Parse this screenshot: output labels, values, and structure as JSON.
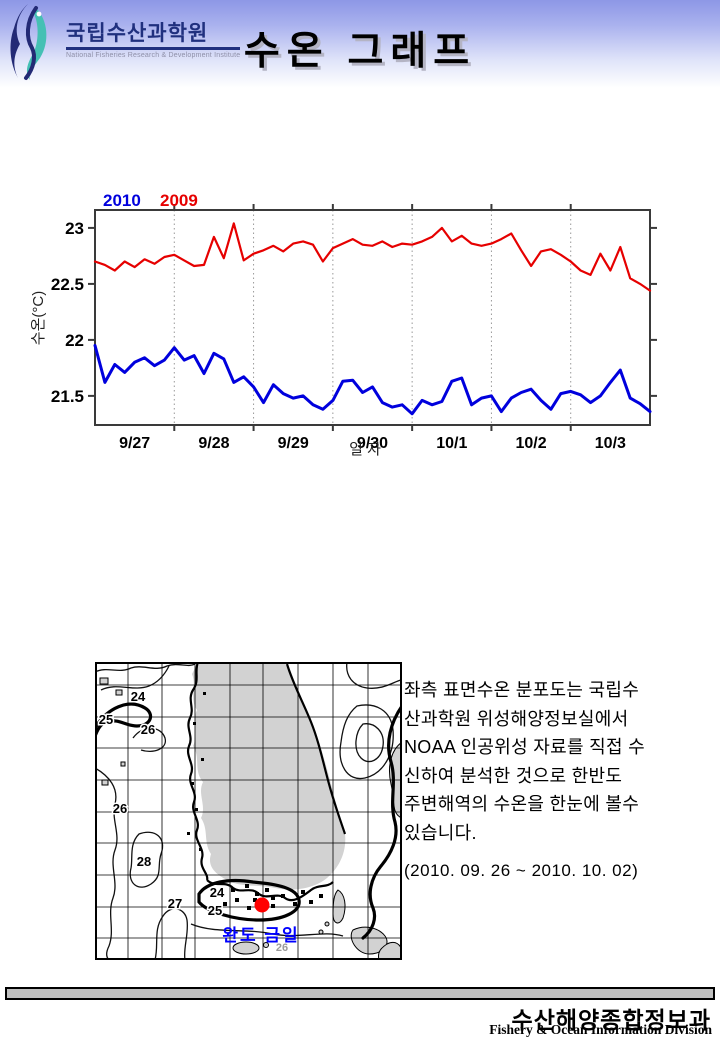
{
  "header": {
    "logo": {
      "org_name": "국립수산과학원",
      "org_subtitle": "National Fisheries Research & Development Institute"
    },
    "title": "수온 그래프"
  },
  "chart_data": {
    "type": "line",
    "xlabel": "일 자",
    "ylabel": "수온(°C)",
    "x_tick_labels": [
      "9/27",
      "9/28",
      "9/29",
      "9/30",
      "10/1",
      "10/2",
      "10/3"
    ],
    "y_ticks": [
      23,
      22.5,
      22,
      21.5
    ],
    "ylim": [
      21.24,
      23.16
    ],
    "grid": "vertical-dotted",
    "legend_position": "top-left",
    "series": [
      {
        "name": "2010",
        "color": "#0000dd",
        "width": 3,
        "values": [
          21.95,
          21.62,
          21.78,
          21.71,
          21.8,
          21.84,
          21.77,
          21.82,
          21.93,
          21.82,
          21.86,
          21.7,
          21.88,
          21.83,
          21.62,
          21.67,
          21.58,
          21.44,
          21.6,
          21.52,
          21.48,
          21.5,
          21.42,
          21.38,
          21.46,
          21.63,
          21.64,
          21.53,
          21.58,
          21.44,
          21.4,
          21.42,
          21.34,
          21.46,
          21.42,
          21.45,
          21.63,
          21.66,
          21.42,
          21.48,
          21.5,
          21.36,
          21.48,
          21.53,
          21.56,
          21.46,
          21.38,
          21.52,
          21.54,
          21.51,
          21.44,
          21.5,
          21.62,
          21.73,
          21.48,
          21.43,
          21.36
        ]
      },
      {
        "name": "2009",
        "color": "#e60000",
        "width": 2.2,
        "values": [
          22.7,
          22.67,
          22.62,
          22.7,
          22.65,
          22.72,
          22.68,
          22.74,
          22.76,
          22.71,
          22.66,
          22.67,
          22.92,
          22.73,
          23.04,
          22.71,
          22.77,
          22.8,
          22.84,
          22.79,
          22.86,
          22.88,
          22.85,
          22.7,
          22.82,
          22.86,
          22.9,
          22.85,
          22.84,
          22.88,
          22.83,
          22.86,
          22.85,
          22.88,
          22.92,
          23.0,
          22.88,
          22.93,
          22.86,
          22.84,
          22.86,
          22.9,
          22.95,
          22.8,
          22.66,
          22.79,
          22.81,
          22.76,
          22.7,
          22.62,
          22.58,
          22.77,
          22.62,
          22.83,
          22.55,
          22.5,
          22.44
        ]
      }
    ]
  },
  "map": {
    "contour_labels": [
      "24",
      "25",
      "26",
      "26",
      "28",
      "27",
      "25",
      "24"
    ],
    "faint_label": "26",
    "station_label": "완도 금일",
    "marker_color": "#ff0000"
  },
  "description": {
    "lines": [
      "좌측 표면수온 분포도는 국립수",
      "산과학원 위성해양정보실에서",
      "NOAA 인공위성 자료를 직접 수",
      "신하여 분석한 것으로  한반도",
      "주변해역의 수온을 한눈에 볼수",
      "있습니다."
    ],
    "date_range": "(2010. 09. 26 ~ 2010. 10. 02)"
  },
  "footer": {
    "division_ko": "수산해양종합정보과",
    "division_en": "Fishery & Ocean Information Division"
  }
}
